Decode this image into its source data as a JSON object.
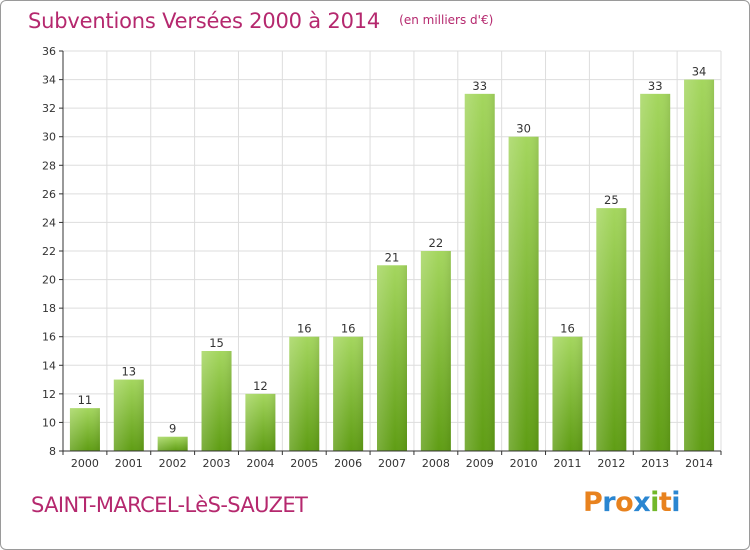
{
  "header": {
    "title": "Subventions Versées 2000 à 2014",
    "subtitle": "(en milliers d'€)"
  },
  "footer": {
    "commune": "SAINT-MARCEL-LèS-SAUZET",
    "logo_text": "Proxiti",
    "logo_colors": [
      "#e8821e",
      "#2a86d1",
      "#e8821e",
      "#2a86d1",
      "#72b82a",
      "#e8821e",
      "#2a86d1"
    ]
  },
  "colors": {
    "title": "#b5286e",
    "bar_light": "#a4d65e",
    "bar_dark": "#5f9d14",
    "grid": "#dddddd",
    "axis": "#333333"
  },
  "chart_data": {
    "type": "bar",
    "categories": [
      "2000",
      "2001",
      "2002",
      "2003",
      "2004",
      "2005",
      "2006",
      "2007",
      "2008",
      "2009",
      "2010",
      "2011",
      "2012",
      "2013",
      "2014"
    ],
    "values": [
      11,
      13,
      9,
      15,
      12,
      16,
      16,
      21,
      22,
      33,
      30,
      16,
      25,
      33,
      34
    ],
    "ylim": [
      8,
      36
    ],
    "yticks": [
      8,
      10,
      12,
      14,
      16,
      18,
      20,
      22,
      24,
      26,
      28,
      30,
      32,
      34,
      36
    ],
    "grid": true,
    "data_labels": true,
    "xlabel": "",
    "ylabel": ""
  }
}
